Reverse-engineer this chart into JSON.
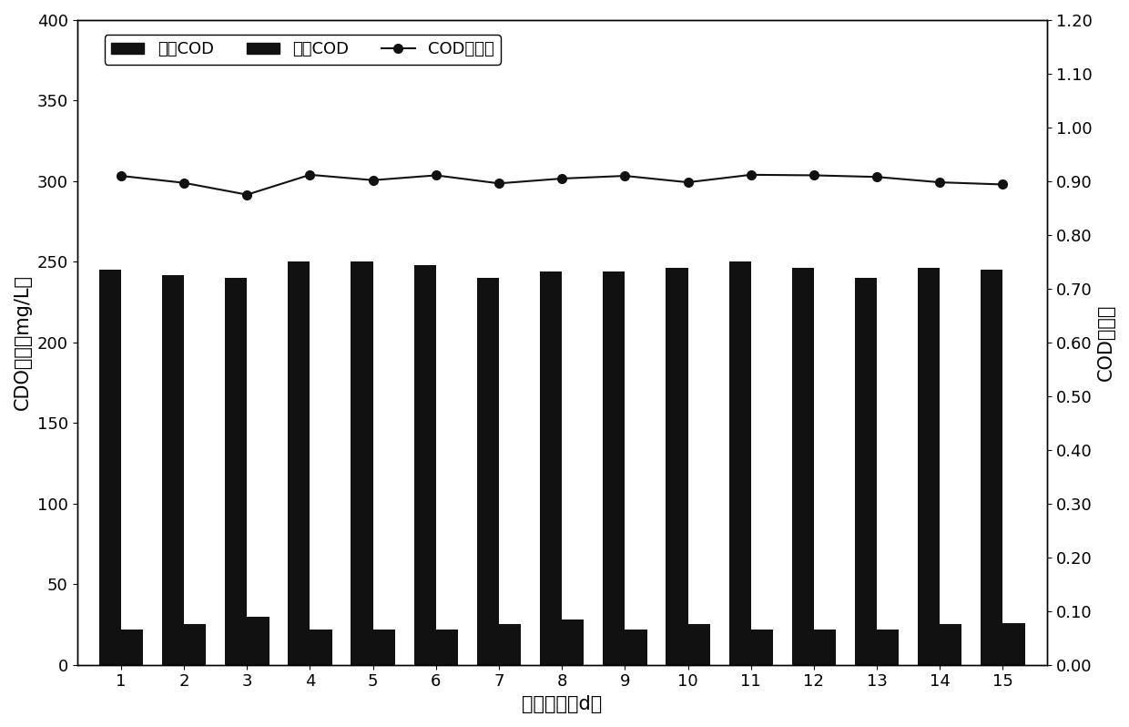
{
  "days": [
    1,
    2,
    3,
    4,
    5,
    6,
    7,
    8,
    9,
    10,
    11,
    12,
    13,
    14,
    15
  ],
  "influent_cod": [
    245,
    242,
    240,
    250,
    250,
    248,
    240,
    244,
    244,
    246,
    250,
    246,
    240,
    246,
    245
  ],
  "effluent_cod": [
    22,
    25,
    30,
    22,
    22,
    22,
    25,
    28,
    22,
    25,
    22,
    22,
    22,
    25,
    26
  ],
  "removal_rate": [
    0.91,
    0.897,
    0.875,
    0.912,
    0.902,
    0.911,
    0.896,
    0.905,
    0.91,
    0.898,
    0.912,
    0.911,
    0.908,
    0.898,
    0.894
  ],
  "bar_color": "#111111",
  "line_color": "#111111",
  "xlabel": "运行天数（d）",
  "ylabel_left": "CDO浓度（mg/L）",
  "ylabel_right": "COD去除率",
  "legend_labels": [
    "入水COD",
    "出水COD",
    "COD去除率"
  ],
  "ylim_left": [
    0,
    400
  ],
  "ylim_right": [
    0.0,
    1.2
  ],
  "yticks_left": [
    0,
    50,
    100,
    150,
    200,
    250,
    300,
    350,
    400
  ],
  "yticks_right": [
    0.0,
    0.1,
    0.2,
    0.3,
    0.4,
    0.5,
    0.6,
    0.7,
    0.8,
    0.9,
    1.0,
    1.1,
    1.2
  ],
  "bar_width": 0.35,
  "figure_width": 12.4,
  "figure_height": 7.98,
  "dpi": 100,
  "font_size_labels": 15,
  "font_size_ticks": 13,
  "font_size_legend": 13,
  "background_color": "#ffffff"
}
